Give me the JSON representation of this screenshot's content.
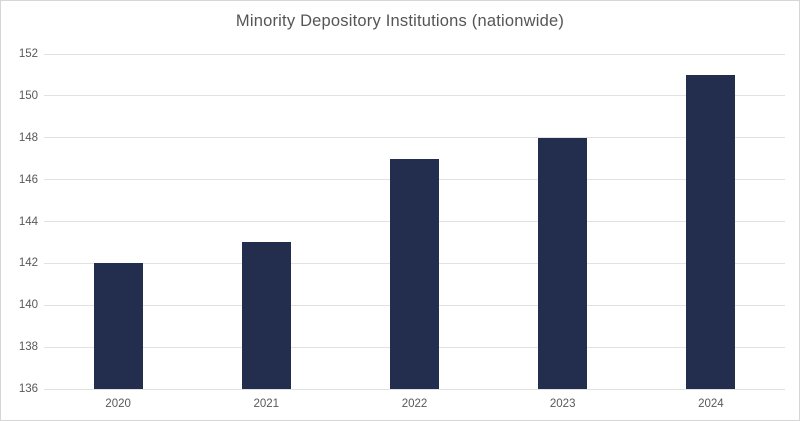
{
  "chart_data": {
    "type": "bar",
    "title": "Minority Depository Institutions (nationwide)",
    "categories": [
      "2020",
      "2021",
      "2022",
      "2023",
      "2024"
    ],
    "values": [
      142,
      143,
      147,
      148,
      151
    ],
    "xlabel": "",
    "ylabel": "",
    "ylim": [
      136,
      152
    ],
    "yticks": [
      136,
      138,
      140,
      142,
      144,
      146,
      148,
      150,
      152
    ],
    "grid": true,
    "legend": false,
    "colors": {
      "bar": "#232d4d",
      "gridline": "#e2e2e2",
      "axis_label": "#595959",
      "title": "#555555",
      "frame_border": "#d6d6d6",
      "background": "#ffffff"
    }
  }
}
